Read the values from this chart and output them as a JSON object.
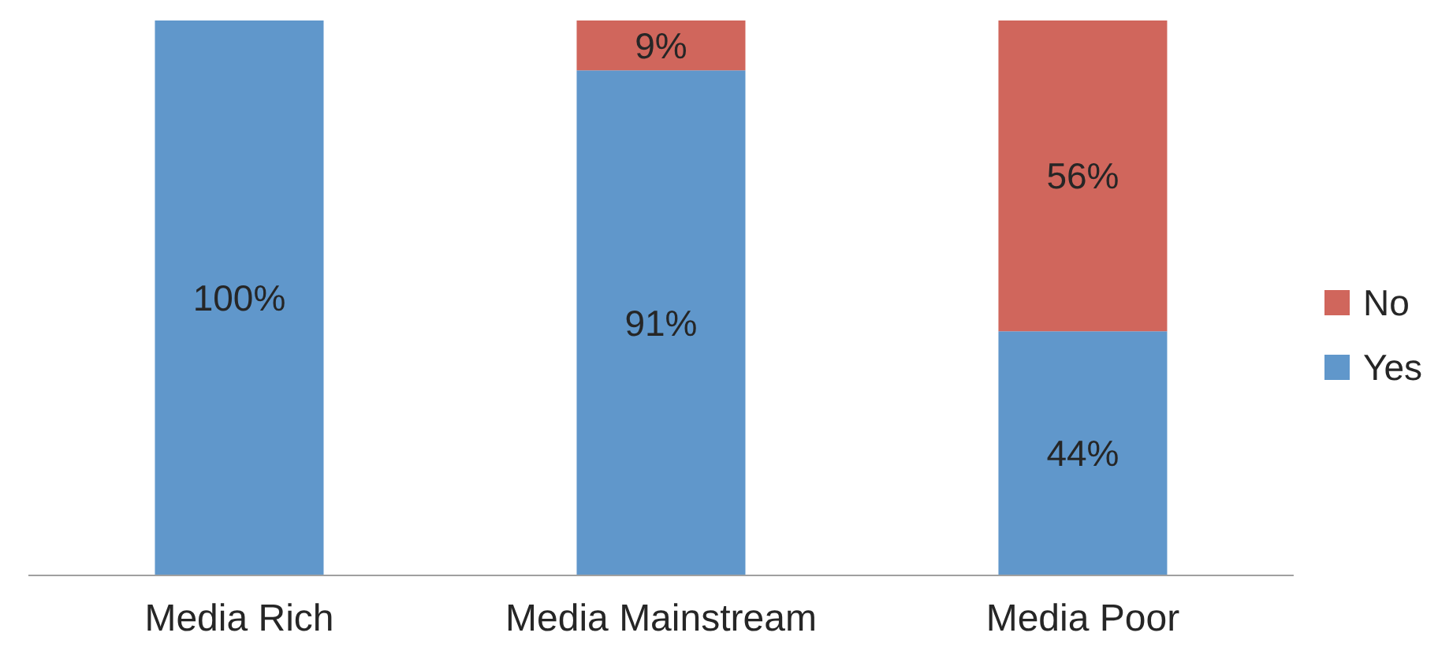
{
  "chart_data": {
    "type": "bar",
    "stacked": true,
    "categories": [
      "Media Rich",
      "Media Mainstream",
      "Media Poor"
    ],
    "series": [
      {
        "name": "Yes",
        "color": "#6097cb",
        "values": [
          100,
          91,
          44
        ],
        "value_labels": [
          "100%",
          "91%",
          "44%"
        ]
      },
      {
        "name": "No",
        "color": "#d0665c",
        "values": [
          null,
          9,
          56
        ],
        "value_labels": [
          null,
          "9%",
          "56%"
        ]
      }
    ],
    "ylim": [
      0,
      100
    ],
    "tick_labels": "x",
    "legend": "right"
  }
}
